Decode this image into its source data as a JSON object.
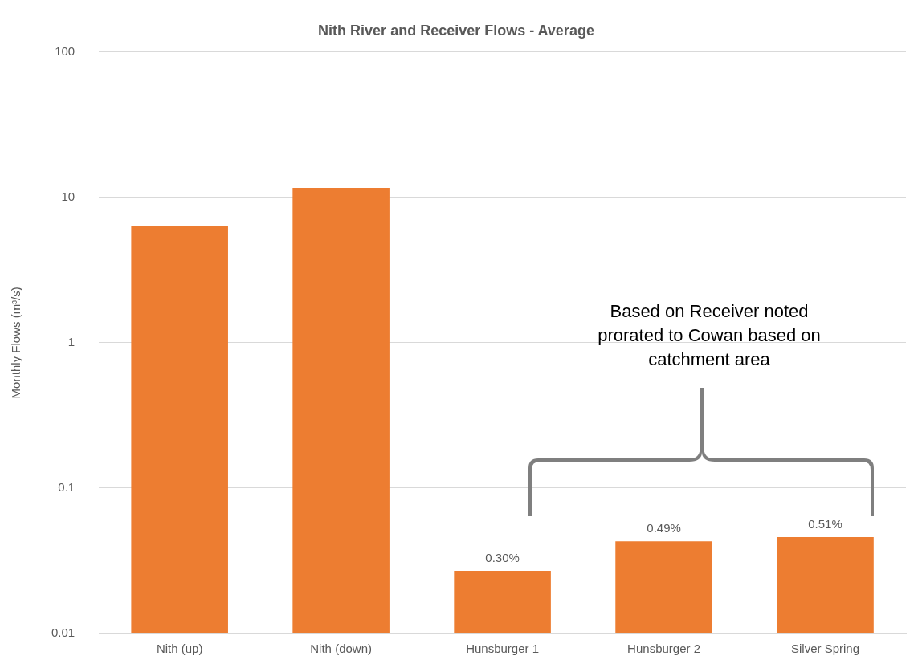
{
  "chart_data": {
    "type": "bar",
    "title": "Nith River and Receiver Flows - Average",
    "ylabel": "Monthly Flows (m³/s)",
    "categories": [
      "Nith (up)",
      "Nith (down)",
      "Hunsburger 1",
      "Hunsburger 2",
      "Silver Spring"
    ],
    "values": [
      6.3,
      11.6,
      0.027,
      0.043,
      0.046
    ],
    "color": "#ed7d31",
    "log": "y",
    "ylim": [
      0.01,
      100
    ],
    "yticks": [
      0.01,
      0.1,
      1,
      10,
      100
    ],
    "grid": "y",
    "legend": false,
    "annotations": [
      "Based on Receiver noted prorated to Cowan based on catchment area",
      {
        "text": "0.30%",
        "x": "Hunsburger 1",
        "y": 0.027
      },
      {
        "text": "0.49%",
        "x": "Hunsburger 2",
        "y": 0.043
      },
      {
        "text": "0.51%",
        "x": "Silver Spring",
        "y": 0.046
      }
    ]
  }
}
